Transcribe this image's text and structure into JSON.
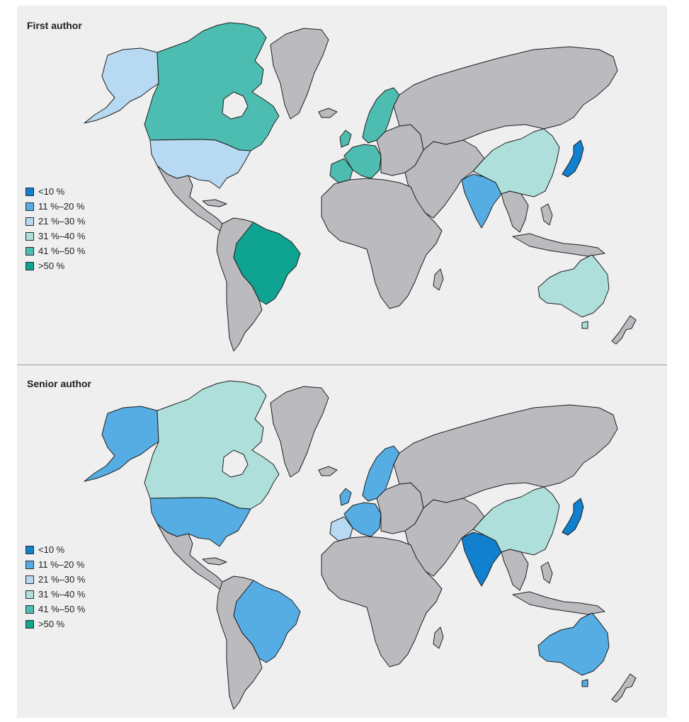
{
  "legend_colors": {
    "lt10": "#1180cf",
    "c11_20": "#56ade3",
    "c21_30": "#b7d9f2",
    "c31_40": "#aedfdb",
    "c41_50": "#4dbcb1",
    "gt50": "#0fa391",
    "no_data": "#bbbbbf"
  },
  "legend": [
    {
      "label": "<10 %",
      "key": "lt10"
    },
    {
      "label": "11 %–20 %",
      "key": "c11_20"
    },
    {
      "label": "21 %–30 %",
      "key": "c21_30"
    },
    {
      "label": "31 %–40 %",
      "key": "c31_40"
    },
    {
      "label": "41 %–50 %",
      "key": "c41_50"
    },
    {
      "label": ">50 %",
      "key": "gt50"
    }
  ],
  "panels": [
    {
      "title": "First author",
      "regions": {
        "alaska": "c21_30",
        "canada": "c41_50",
        "usa": "c21_30",
        "greenland": "no_data",
        "mexico_central_america": "no_data",
        "brazil": "gt50",
        "south_america_other": "no_data",
        "scandinavia": "c41_50",
        "western_europe": "c41_50",
        "iberia": "c41_50",
        "europe_other": "no_data",
        "africa": "no_data",
        "russia": "no_data",
        "middle_east_central_asia": "no_data",
        "india": "c11_20",
        "china": "c31_40",
        "japan": "lt10",
        "southeast_asia": "no_data",
        "australia": "c31_40",
        "new_zealand": "no_data"
      }
    },
    {
      "title": "Senior author",
      "regions": {
        "alaska": "c11_20",
        "canada": "c31_40",
        "usa": "c11_20",
        "greenland": "no_data",
        "mexico_central_america": "no_data",
        "brazil": "c11_20",
        "south_america_other": "no_data",
        "scandinavia": "c11_20",
        "western_europe": "c11_20",
        "iberia": "c21_30",
        "europe_other": "no_data",
        "africa": "no_data",
        "russia": "no_data",
        "middle_east_central_asia": "no_data",
        "india": "lt10",
        "china": "c31_40",
        "japan": "lt10",
        "southeast_asia": "no_data",
        "australia": "c11_20",
        "new_zealand": "no_data"
      }
    }
  ]
}
